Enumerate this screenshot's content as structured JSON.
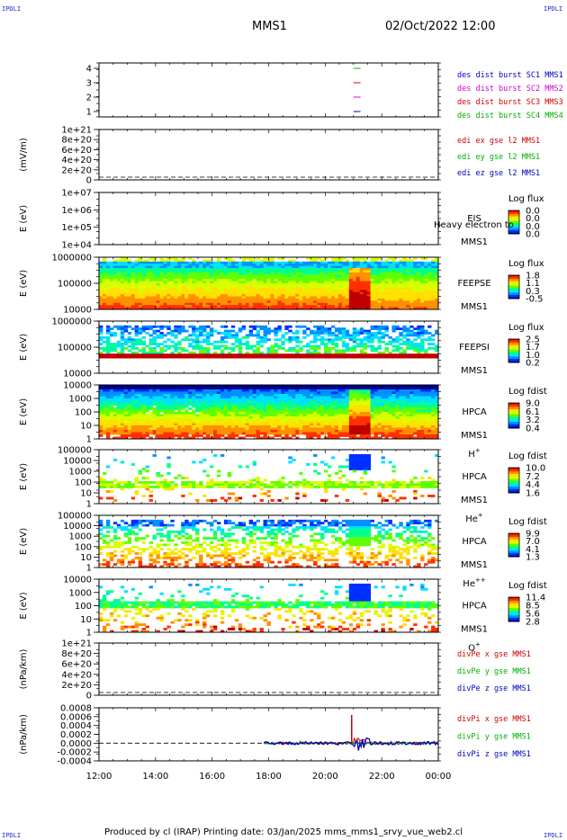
{
  "corners": {
    "tl": "IPDLI",
    "tr": "IPDLI",
    "bl": "IPDLI",
    "br": "IPDLI"
  },
  "header": {
    "title": "MMS1",
    "datetime": "02/Oct/2022 12:00"
  },
  "footer": {
    "text": "Produced by cl (IRAP)   Printing date: 03/Jan/2025   mms_mms1_srvy_vue_web2.cl"
  },
  "colors": {
    "rainbow": [
      "#000090",
      "#0040ff",
      "#00c0ff",
      "#00ff80",
      "#80ff00",
      "#ffff00",
      "#ff8000",
      "#ff0000",
      "#a00000"
    ]
  },
  "chart_data": {
    "type": "multi-panel-timeseries",
    "x_ticks": [
      "12:00",
      "14:00",
      "16:00",
      "18:00",
      "20:00",
      "22:00",
      "00:00"
    ],
    "panels": [
      {
        "id": "burst",
        "type": "line",
        "yticks": [
          "1",
          "2",
          "3",
          "4"
        ],
        "legend": [
          {
            "text": "des dist burst SC1 MMS1",
            "color": "#0000c0"
          },
          {
            "text": "des dist burst SC2 MMS2",
            "color": "#d000d0"
          },
          {
            "text": "des dist burst SC3 MMS3",
            "color": "#d00000"
          },
          {
            "text": "des dist burst SC4 MMS4",
            "color": "#00b000"
          }
        ],
        "segments": [
          {
            "level": 4,
            "x_start": "21:00",
            "x_end": "21:15",
            "color": "#00b000"
          },
          {
            "level": 3,
            "x_start": "21:00",
            "x_end": "21:15",
            "color": "#d00000"
          },
          {
            "level": 2,
            "x_start": "21:00",
            "x_end": "21:15",
            "color": "#d000d0"
          },
          {
            "level": 1,
            "x_start": "21:00",
            "x_end": "21:15",
            "color": "#0000c0"
          }
        ]
      },
      {
        "id": "edi",
        "type": "line",
        "ylabel": "(mV/m)",
        "yticks": [
          "1e+21",
          "8e+20",
          "6e+20",
          "4e+20",
          "2e+20",
          "0"
        ],
        "legend": [
          {
            "text": "edi ex gse l2 MMS1",
            "color": "#d00000"
          },
          {
            "text": "edi ey gse l2 MMS1",
            "color": "#00b000"
          },
          {
            "text": "edi ez gse l2 MMS1",
            "color": "#0000c0"
          }
        ]
      },
      {
        "id": "eis",
        "type": "heatmap",
        "ylabel": "E (eV)",
        "yticks": [
          "1e+07",
          "1e+06",
          "1e+05",
          "1e+04"
        ],
        "labels": [
          "EIS",
          "MMS1"
        ],
        "overlay": "Heavy electron to",
        "cbar_title": "Log flux",
        "cbar_ticks": [
          "0.0",
          "0.0",
          "0.0",
          "0.0"
        ]
      },
      {
        "id": "feepse",
        "type": "heatmap",
        "ylabel": "E (eV)",
        "yticks": [
          "1000000",
          "100000",
          "10000"
        ],
        "labels": [
          "FEEPSE",
          "MMS1"
        ],
        "cbar_title": "Log flux",
        "cbar_ticks": [
          "1.8",
          "1.1",
          "0.3",
          "-0.5"
        ]
      },
      {
        "id": "feepsi",
        "type": "heatmap",
        "ylabel": "E (eV)",
        "yticks": [
          "1000000",
          "100000",
          "10000"
        ],
        "labels": [
          "FEEPSI",
          "MMS1"
        ],
        "cbar_title": "Log flux",
        "cbar_ticks": [
          "2.5",
          "1.7",
          "1.0",
          "0.2"
        ]
      },
      {
        "id": "hpca_h",
        "type": "heatmap",
        "ylabel": "E (eV)",
        "yticks": [
          "10000",
          "1000",
          "100",
          "10",
          "1"
        ],
        "labels": [
          "HPCA",
          "MMS1"
        ],
        "species": "H",
        "species_sup": "+",
        "cbar_title": "Log fdist",
        "cbar_ticks": [
          "9.0",
          "6.1",
          "3.2",
          "0.4"
        ]
      },
      {
        "id": "hpca_he1",
        "type": "heatmap",
        "ylabel": "E (eV)",
        "yticks": [
          "100000",
          "10000",
          "1000",
          "100",
          "10",
          "1"
        ],
        "labels": [
          "HPCA",
          "MMS1"
        ],
        "species": "He",
        "species_sup": "+",
        "cbar_title": "Log fdist",
        "cbar_ticks": [
          "10.0",
          "7.2",
          "4.4",
          "1.6"
        ]
      },
      {
        "id": "hpca_he2",
        "type": "heatmap",
        "ylabel": "E (eV)",
        "yticks": [
          "100000",
          "10000",
          "1000",
          "100",
          "10",
          "1"
        ],
        "labels": [
          "HPCA",
          "MMS1"
        ],
        "species": "He",
        "species_sup": "++",
        "cbar_title": "Log fdist",
        "cbar_ticks": [
          "9.9",
          "7.0",
          "4.1",
          "1.3"
        ]
      },
      {
        "id": "hpca_o",
        "type": "heatmap",
        "ylabel": "E (eV)",
        "yticks": [
          "10000",
          "1000",
          "100",
          "10",
          "1"
        ],
        "labels": [
          "HPCA",
          "MMS1"
        ],
        "species": "O",
        "species_sup": "+",
        "cbar_title": "Log fdist",
        "cbar_ticks": [
          "11.4",
          "8.5",
          "5.6",
          "2.8"
        ]
      },
      {
        "id": "divpe",
        "type": "line",
        "ylabel": "(nPa/km)",
        "yticks": [
          "1e+21",
          "8e+20",
          "6e+20",
          "4e+20",
          "2e+20",
          "0"
        ],
        "legend": [
          {
            "text": "divPe x gse MMS1",
            "color": "#d00000"
          },
          {
            "text": "divPe y gse MMS1",
            "color": "#00b000"
          },
          {
            "text": "divPe z gse MMS1",
            "color": "#0000c0"
          }
        ]
      },
      {
        "id": "divpi",
        "type": "line",
        "ylabel": "(nPa/km)",
        "yticks": [
          "0.0008",
          "0.0006",
          "0.0004",
          "0.0002",
          "0.0000",
          "-0.0002",
          "-0.0004"
        ],
        "legend": [
          {
            "text": "divPi x gse MMS1",
            "color": "#d00000"
          },
          {
            "text": "divPi y gse MMS1",
            "color": "#00b000"
          },
          {
            "text": "divPi z gse MMS1",
            "color": "#0000c0"
          }
        ]
      }
    ]
  }
}
